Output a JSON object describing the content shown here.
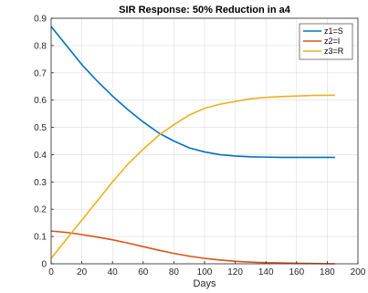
{
  "chart_data": {
    "type": "line",
    "title": "SIR Response: 50% Reduction in a4",
    "xlabel": "Days",
    "ylabel": "",
    "xlim": [
      0,
      200
    ],
    "ylim": [
      0,
      0.9
    ],
    "xticks": [
      "0",
      "20",
      "40",
      "60",
      "80",
      "100",
      "120",
      "140",
      "160",
      "180",
      "200"
    ],
    "yticks": [
      "0",
      "0.1",
      "0.2",
      "0.3",
      "0.4",
      "0.5",
      "0.6",
      "0.7",
      "0.8",
      "0.9"
    ],
    "grid": true,
    "legend_position": "top-right",
    "x": [
      0,
      10,
      20,
      30,
      40,
      50,
      60,
      70,
      80,
      90,
      100,
      110,
      120,
      130,
      140,
      150,
      160,
      170,
      185
    ],
    "series": [
      {
        "name": "z1=S",
        "color": "#0072BD",
        "values": [
          0.87,
          0.8,
          0.73,
          0.67,
          0.615,
          0.565,
          0.52,
          0.48,
          0.45,
          0.425,
          0.41,
          0.4,
          0.395,
          0.392,
          0.391,
          0.39,
          0.39,
          0.39,
          0.39
        ]
      },
      {
        "name": "z2=I",
        "color": "#D95319",
        "values": [
          0.12,
          0.115,
          0.107,
          0.098,
          0.088,
          0.076,
          0.063,
          0.05,
          0.038,
          0.028,
          0.02,
          0.014,
          0.009,
          0.006,
          0.004,
          0.003,
          0.002,
          0.001,
          0.0
        ]
      },
      {
        "name": "z3=R",
        "color": "#EDB120",
        "values": [
          0.02,
          0.09,
          0.16,
          0.23,
          0.3,
          0.365,
          0.42,
          0.47,
          0.51,
          0.545,
          0.57,
          0.585,
          0.595,
          0.605,
          0.61,
          0.613,
          0.615,
          0.617,
          0.618
        ]
      }
    ]
  }
}
